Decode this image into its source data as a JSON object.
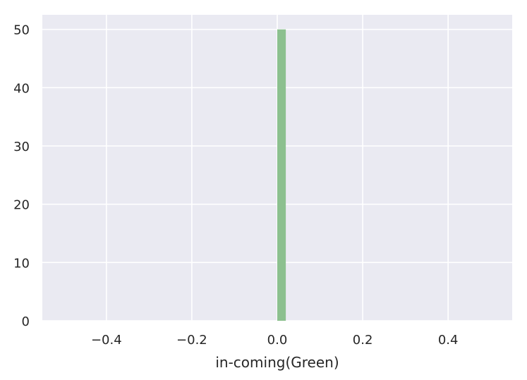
{
  "chart_data": {
    "type": "bar",
    "title": "",
    "xlabel": "in-coming(Green)",
    "ylabel": "",
    "xlim": [
      -0.55,
      0.55
    ],
    "ylim": [
      0,
      52.5
    ],
    "xticks": [
      -0.4,
      -0.2,
      0.0,
      0.2,
      0.4
    ],
    "xtick_labels": [
      "−0.4",
      "−0.2",
      "0.0",
      "0.2",
      "0.4"
    ],
    "yticks": [
      0,
      10,
      20,
      30,
      40,
      50
    ],
    "ytick_labels": [
      "0",
      "10",
      "20",
      "30",
      "40",
      "50"
    ],
    "grid": true,
    "background_color": "#eaeaf2",
    "grid_color": "#ffffff",
    "bar_color": "#8cc08f",
    "bins": [
      {
        "x_start": 0.0,
        "x_end": 0.02,
        "value": 50
      }
    ]
  }
}
